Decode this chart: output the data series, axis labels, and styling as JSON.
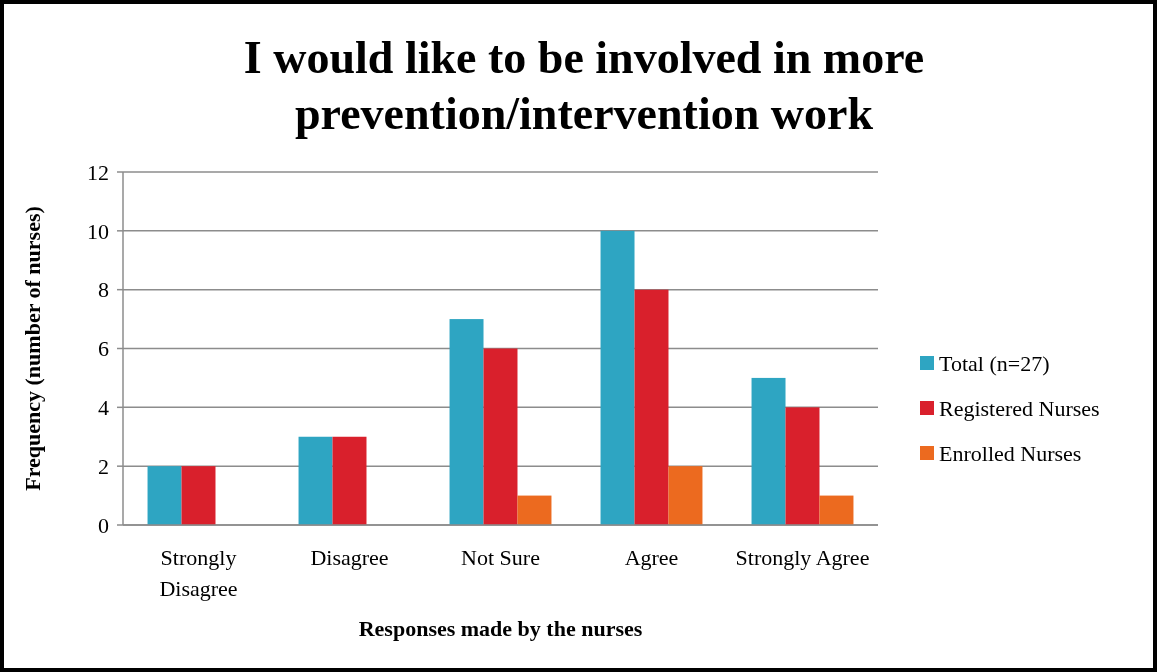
{
  "chart_data": {
    "type": "bar",
    "title": "I would like to be involved in more prevention/intervention work",
    "xlabel": "Responses made by the nurses",
    "ylabel": "Frequency (number of nurses)",
    "categories": [
      "Strongly Disagree",
      "Disagree",
      "Not Sure",
      "Agree",
      "Strongly Agree"
    ],
    "series": [
      {
        "name": "Total (n=27)",
        "color": "#2ea5c2",
        "values": [
          2,
          3,
          7,
          10,
          5
        ]
      },
      {
        "name": "Registered Nurses",
        "color": "#d9202c",
        "values": [
          2,
          3,
          6,
          8,
          4
        ]
      },
      {
        "name": "Enrolled Nurses",
        "color": "#ec6a1f",
        "values": [
          0,
          0,
          1,
          2,
          1
        ]
      }
    ],
    "ylim": [
      0,
      12
    ],
    "yticks": [
      0,
      2,
      4,
      6,
      8,
      10,
      12
    ],
    "grid": "y",
    "legend": "right"
  }
}
